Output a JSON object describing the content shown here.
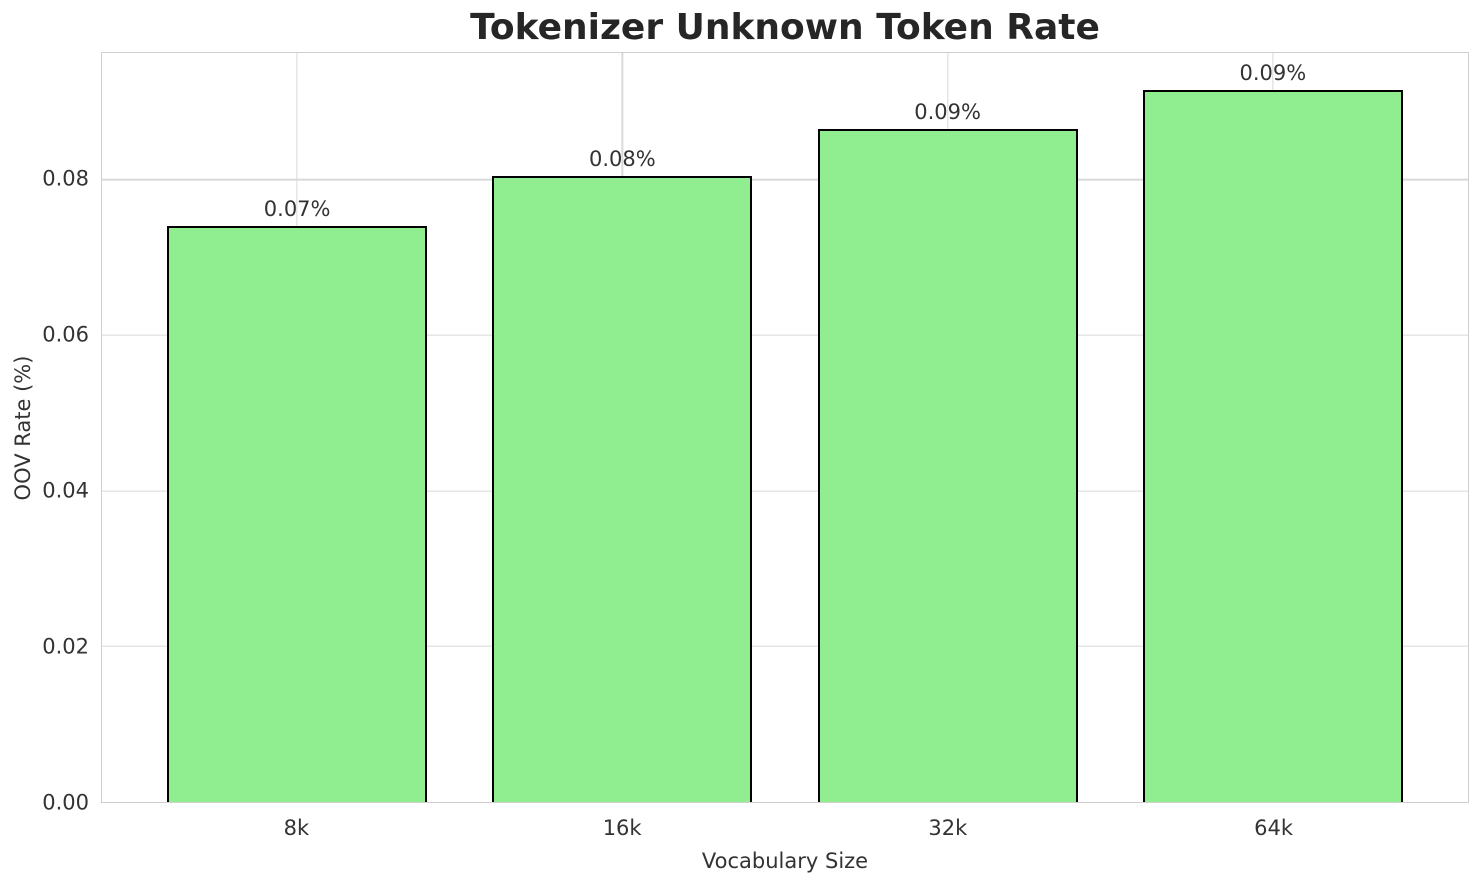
{
  "chart_data": {
    "type": "bar",
    "title": "Tokenizer Unknown Token Rate",
    "xlabel": "Vocabulary Size",
    "ylabel": "OOV Rate (%)",
    "categories": [
      "8k",
      "16k",
      "32k",
      "64k"
    ],
    "values": [
      0.074,
      0.0805,
      0.0865,
      0.0915
    ],
    "bar_labels": [
      "0.07%",
      "0.08%",
      "0.09%",
      "0.09%"
    ],
    "ytick_values": [
      0.0,
      0.02,
      0.04,
      0.06,
      0.08
    ],
    "ytick_labels": [
      "0.00",
      "0.02",
      "0.04",
      "0.06",
      "0.08"
    ],
    "ylim": [
      0,
      0.0963
    ],
    "xlim": [
      -0.6,
      3.6
    ],
    "bar_width": 0.8,
    "grid": true,
    "legend_position": "none",
    "colors": {
      "bar_fill": "#90ee90",
      "bar_edge": "#000000",
      "grid": "#d9d9d9",
      "spine": "#cfcfcf",
      "title_text": "#262626",
      "label_text": "#333333",
      "background": "#ffffff"
    }
  }
}
